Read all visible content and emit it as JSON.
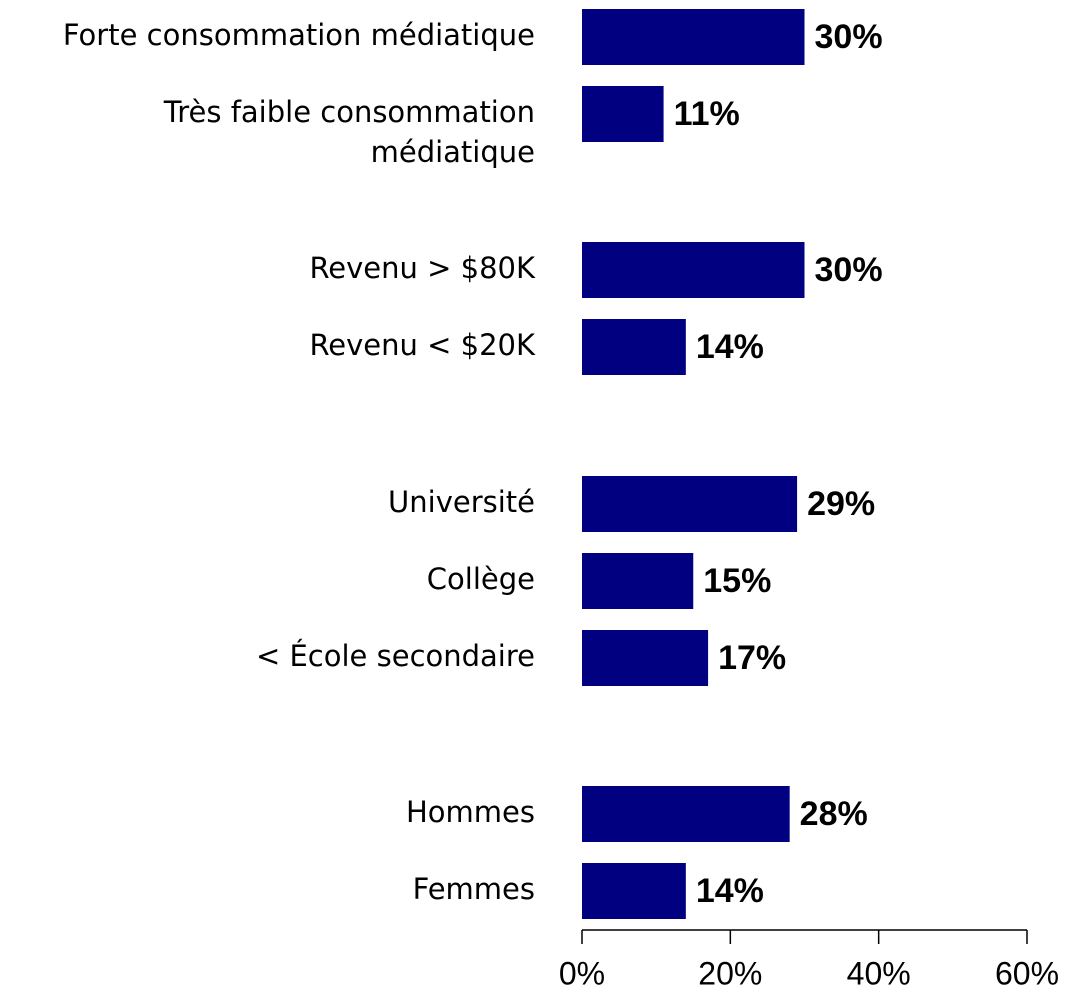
{
  "chart_data": {
    "type": "barh",
    "categories": [
      "Forte consommation médiatique",
      "Très faible consommation\nmédiatique",
      "Revenu > $80K",
      "Revenu < $20K",
      "Université",
      "Collège",
      "< École secondaire",
      "Hommes",
      "Femmes"
    ],
    "values": [
      30,
      11,
      30,
      14,
      29,
      15,
      17,
      28,
      14
    ],
    "value_labels": [
      "30%",
      "11%",
      "30%",
      "14%",
      "29%",
      "15%",
      "17%",
      "28%",
      "14%"
    ],
    "color": "#000080",
    "xlim": [
      0,
      60
    ],
    "xticks": [
      {
        "value": 0,
        "label": "0%"
      },
      {
        "value": 20,
        "label": "20%"
      },
      {
        "value": 40,
        "label": "40%"
      },
      {
        "value": 60,
        "label": "60%"
      }
    ],
    "grid": false
  }
}
